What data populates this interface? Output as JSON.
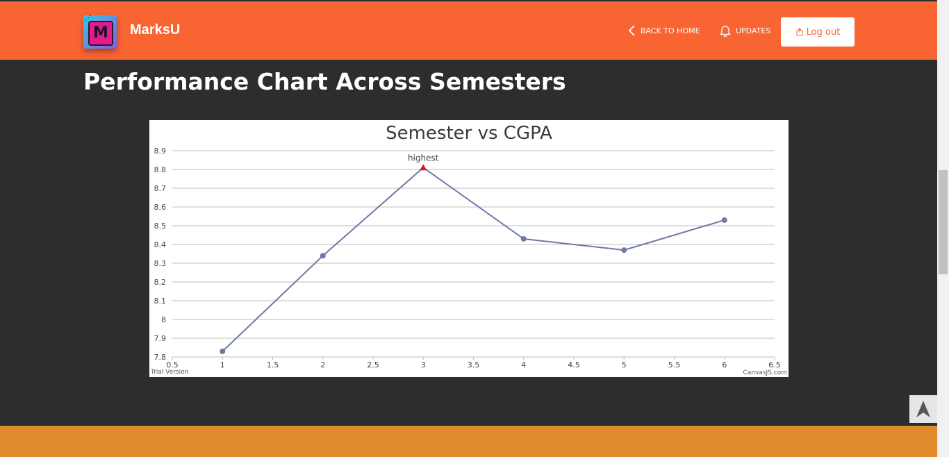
{
  "header": {
    "brand": "MarksU",
    "logo_letter": "M",
    "nav": {
      "back_home": "BACK TO HOME",
      "updates": "UPDATES",
      "logout": "Log out"
    }
  },
  "page": {
    "title": "Performance Chart Across Semesters"
  },
  "chart_data": {
    "type": "line",
    "title": "Semester vs CGPA",
    "xlabel": "",
    "ylabel": "",
    "xlim": [
      0.5,
      6.5
    ],
    "ylim": [
      7.8,
      8.9
    ],
    "x_ticks": [
      "0.5",
      "1",
      "1.5",
      "2",
      "2.5",
      "3",
      "3.5",
      "4",
      "4.5",
      "5",
      "5.5",
      "6",
      "6.5"
    ],
    "y_ticks": [
      "7.8",
      "7.9",
      "8",
      "8.1",
      "8.2",
      "8.3",
      "8.4",
      "8.5",
      "8.6",
      "8.7",
      "8.8",
      "8.9"
    ],
    "grid": true,
    "series": [
      {
        "x": [
          1,
          2,
          3,
          4,
          5,
          6
        ],
        "y": [
          7.83,
          8.34,
          8.81,
          8.43,
          8.37,
          8.53
        ],
        "color": "#6d78a6"
      }
    ],
    "annotations": [
      {
        "x": 3,
        "y": 8.81,
        "label": "highest",
        "marker": "triangle",
        "color": "#e0151b"
      }
    ],
    "watermark_left": "Trial Version",
    "watermark_right": "CanvasJS.com"
  },
  "colors": {
    "nav_bg": "#f96433",
    "page_bg": "#2d2d2d",
    "footer_bg": "#df8a2c"
  },
  "icons": {
    "back": "chevron-left-icon",
    "updates": "bell-icon",
    "logout": "logout-icon",
    "scroll_top": "arrow-up-icon"
  }
}
